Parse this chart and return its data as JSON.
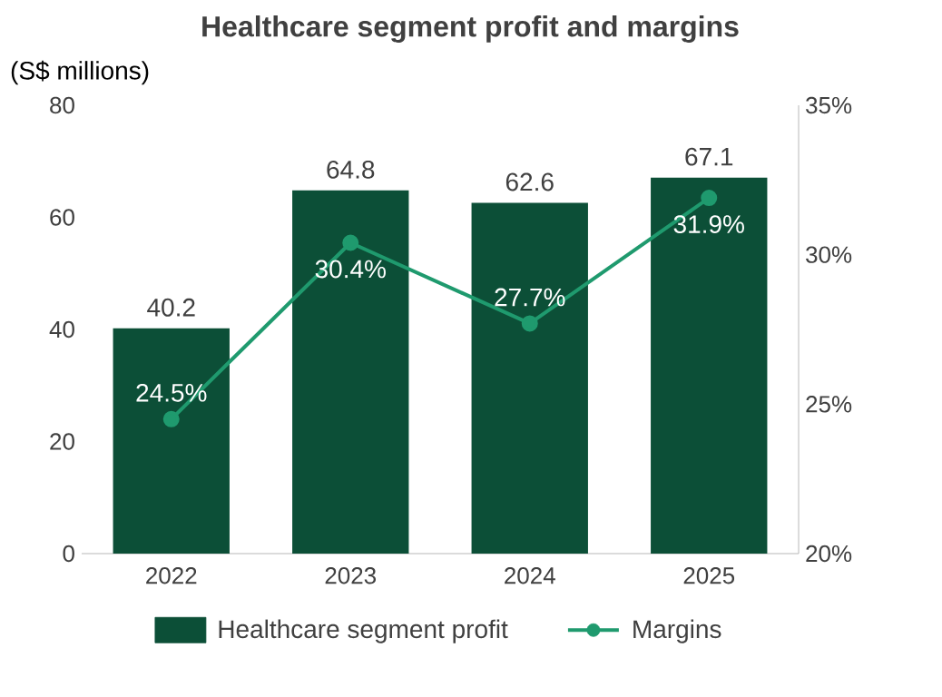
{
  "chart_data": {
    "type": "bar",
    "title": "Healthcare segment profit and margins",
    "ylabel": "(S$ millions)",
    "categories": [
      "2022",
      "2023",
      "2024",
      "2025"
    ],
    "series": [
      {
        "name": "Healthcare segment profit",
        "color": "#0c4f37",
        "values": [
          40.2,
          64.8,
          62.6,
          67.1
        ],
        "data_labels": true
      },
      {
        "name": "Margins",
        "type": "line",
        "axis": "y2",
        "color": "#1f9a6e",
        "values": [
          24.5,
          30.4,
          27.7,
          31.9
        ],
        "value_labels": [
          "24.5%",
          "30.4%",
          "27.7%",
          "31.9%"
        ],
        "marker": "circle",
        "line_style": "solid"
      }
    ],
    "ylim": [
      0,
      80
    ],
    "yticks": [
      0,
      20,
      40,
      60,
      80
    ],
    "y2lim": [
      20,
      35
    ],
    "y2ticks": [
      {
        "value": 20,
        "label": "20%"
      },
      {
        "value": 25,
        "label": "25%"
      },
      {
        "value": 30,
        "label": "30%"
      },
      {
        "value": 35,
        "label": "35%"
      }
    ],
    "grid": false,
    "legend": "bottom"
  }
}
